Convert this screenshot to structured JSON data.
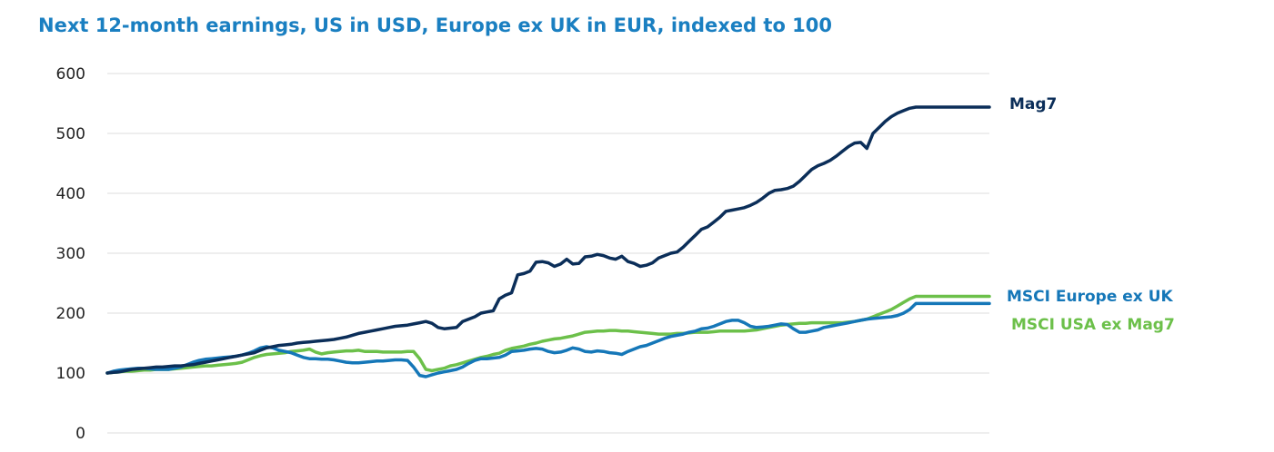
{
  "chart_data": {
    "type": "line",
    "title": "Next 12-month earnings, US in USD, Europe ex UK in EUR, indexed to 100",
    "xlabel": "",
    "ylabel": "",
    "ylim": [
      0,
      600
    ],
    "yticks": [
      0,
      100,
      200,
      300,
      400,
      500,
      600
    ],
    "grid": true,
    "legend": "direct labels at right end of lines",
    "colors": {
      "grid": "#dddddd",
      "mag7": "#0b2e59",
      "europe": "#1577b8",
      "usa": "#6cc04a"
    },
    "x": [
      0,
      1,
      2,
      3,
      4,
      5,
      6,
      7,
      8,
      9,
      10,
      11,
      12,
      13,
      14,
      15,
      16,
      17,
      18,
      19,
      20,
      21,
      22,
      23,
      24,
      25,
      26,
      27,
      28,
      29,
      30,
      31,
      32,
      33,
      34,
      35,
      36,
      37,
      38,
      39,
      40,
      41,
      42,
      43,
      44,
      45,
      46,
      47,
      48,
      49,
      50,
      51,
      52,
      53,
      54,
      55,
      56,
      57,
      58,
      59,
      60,
      61,
      62,
      63,
      64,
      65,
      66,
      67,
      68,
      69,
      70,
      71,
      72,
      73,
      74,
      75,
      76,
      77,
      78,
      79,
      80,
      81,
      82,
      83,
      84,
      85,
      86,
      87,
      88,
      89,
      90,
      91,
      92,
      93,
      94,
      95,
      96,
      97,
      98,
      99,
      100,
      101,
      102,
      103,
      104,
      105,
      106,
      107,
      108,
      109,
      110,
      111,
      112,
      113,
      114,
      115,
      116,
      117,
      118,
      119,
      120,
      121,
      122,
      123,
      124,
      125,
      126,
      127,
      128,
      129,
      130,
      131,
      132,
      133,
      134,
      135,
      136,
      137,
      138,
      139,
      140,
      141,
      142,
      143,
      144
    ],
    "series": [
      {
        "name": "Mag7",
        "values": [
          100,
          101,
          102,
          104,
          106,
          107,
          108,
          109,
          110,
          110,
          111,
          112,
          112,
          113,
          114,
          116,
          118,
          120,
          122,
          124,
          126,
          128,
          130,
          132,
          134,
          138,
          142,
          144,
          146,
          147,
          148,
          150,
          151,
          152,
          153,
          154,
          155,
          156,
          158,
          160,
          163,
          166,
          168,
          170,
          172,
          174,
          176,
          178,
          179,
          180,
          182,
          184,
          186,
          183,
          176,
          174,
          175,
          176,
          186,
          190,
          194,
          200,
          202,
          204,
          224,
          230,
          234,
          264,
          266,
          270,
          285,
          286,
          284,
          278,
          282,
          290,
          282,
          283,
          294,
          295,
          298,
          296,
          292,
          290,
          295,
          286,
          283,
          278,
          280,
          284,
          292,
          296,
          300,
          302,
          310,
          320,
          330,
          340,
          344,
          352,
          360,
          370,
          372,
          374,
          376,
          380,
          385,
          392,
          400,
          405,
          406,
          408,
          412,
          420,
          430,
          440,
          446,
          450,
          455,
          462,
          470,
          478,
          484,
          485,
          475,
          500,
          510,
          520,
          528,
          534,
          538,
          542,
          544,
          544,
          544,
          544,
          544,
          544,
          544,
          544,
          544,
          544,
          544,
          544,
          544
        ]
      },
      {
        "name": "MSCI Europe ex UK",
        "values": [
          100,
          103,
          105,
          106,
          107,
          108,
          108,
          107,
          106,
          106,
          106,
          108,
          110,
          114,
          118,
          121,
          123,
          124,
          125,
          126,
          127,
          128,
          130,
          133,
          137,
          142,
          144,
          142,
          138,
          136,
          134,
          130,
          126,
          124,
          124,
          123,
          123,
          122,
          120,
          118,
          117,
          117,
          118,
          119,
          120,
          120,
          121,
          122,
          122,
          121,
          110,
          96,
          94,
          97,
          100,
          102,
          104,
          106,
          110,
          116,
          121,
          124,
          124,
          125,
          126,
          130,
          136,
          137,
          138,
          140,
          141,
          140,
          136,
          134,
          135,
          138,
          142,
          140,
          136,
          135,
          137,
          136,
          134,
          133,
          131,
          136,
          140,
          144,
          146,
          150,
          154,
          158,
          161,
          163,
          165,
          168,
          170,
          174,
          175,
          178,
          182,
          186,
          188,
          188,
          184,
          178,
          176,
          177,
          178,
          180,
          182,
          181,
          174,
          168,
          168,
          170,
          172,
          176,
          178,
          180,
          182,
          184,
          186,
          188,
          190,
          191,
          192,
          193,
          194,
          196,
          200,
          206,
          216,
          216,
          216,
          216,
          216,
          216,
          216,
          216,
          216,
          216,
          216,
          216,
          216
        ]
      },
      {
        "name": "MSCI USA ex Mag7",
        "values": [
          100,
          101,
          102,
          103,
          103,
          104,
          105,
          105,
          106,
          106,
          106,
          107,
          108,
          109,
          110,
          111,
          112,
          112,
          113,
          114,
          115,
          116,
          118,
          122,
          126,
          129,
          131,
          132,
          133,
          134,
          136,
          137,
          138,
          140,
          135,
          132,
          134,
          135,
          136,
          137,
          137,
          138,
          136,
          136,
          136,
          135,
          135,
          135,
          135,
          136,
          136,
          124,
          106,
          104,
          106,
          108,
          112,
          114,
          117,
          120,
          123,
          126,
          128,
          131,
          133,
          138,
          141,
          143,
          145,
          148,
          150,
          153,
          155,
          157,
          158,
          160,
          162,
          165,
          168,
          169,
          170,
          170,
          171,
          171,
          170,
          170,
          169,
          168,
          167,
          166,
          165,
          165,
          165,
          166,
          166,
          167,
          168,
          168,
          168,
          169,
          170,
          170,
          170,
          170,
          170,
          171,
          172,
          174,
          176,
          178,
          180,
          181,
          182,
          183,
          183,
          184,
          184,
          184,
          184,
          184,
          184,
          185,
          186,
          188,
          190,
          194,
          198,
          202,
          206,
          212,
          218,
          224,
          228,
          228,
          228,
          228,
          228,
          228,
          228,
          228,
          228,
          228,
          228,
          228,
          228
        ]
      }
    ]
  }
}
